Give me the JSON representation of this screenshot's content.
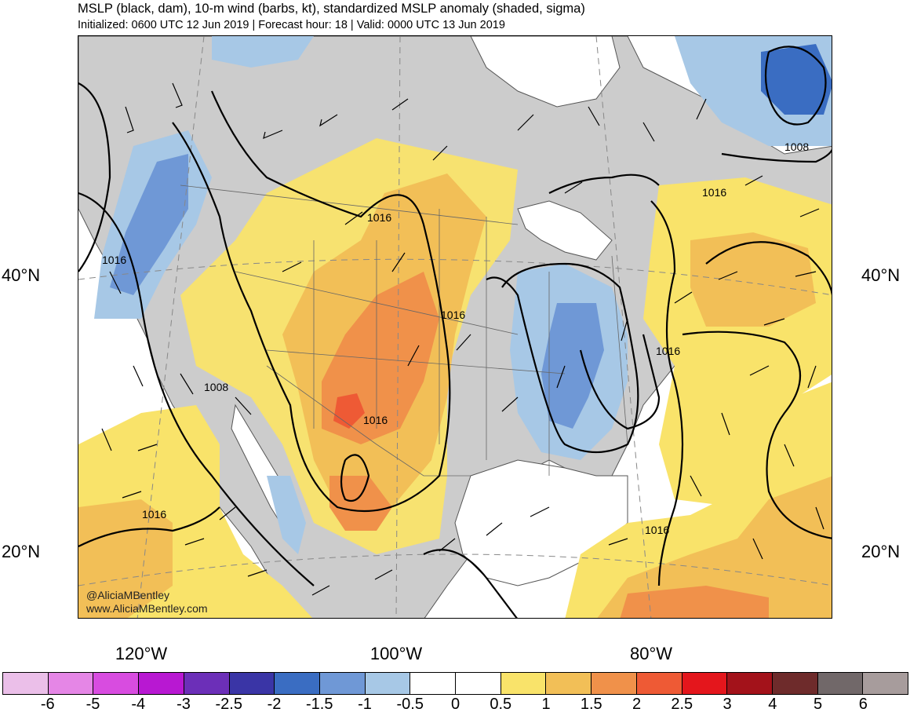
{
  "title": "MSLP (black, dam), 10-m wind (barbs, kt), standardized MSLP anomaly (shaded, sigma)",
  "subtitle": "Initialized: 0600 UTC 12 Jun 2019 | Forecast hour: 18 | Valid: 0000 UTC 13 Jun 2019",
  "lat_labels": [
    "40°N",
    "20°N"
  ],
  "lon_labels": [
    "120°W",
    "100°W",
    "80°W"
  ],
  "credit": {
    "handle": "@AliciaMBentley",
    "site": "www.AliciaMBentley.com"
  },
  "contour_labels": [
    "1016",
    "1016",
    "1016",
    "1016",
    "1008",
    "1008",
    "1016",
    "1016",
    "1016",
    "1016"
  ],
  "colorbar": {
    "labels": [
      "-6",
      "-5",
      "-4",
      "-3",
      "-2.5",
      "-2",
      "-1.5",
      "-1",
      "-0.5",
      "0",
      "0.5",
      "1",
      "1.5",
      "2",
      "2.5",
      "3",
      "4",
      "5",
      "6"
    ],
    "colors": [
      "#ebbfe9",
      "#e586e6",
      "#d84ce0",
      "#b818d2",
      "#6c2fb8",
      "#3a35a6",
      "#3a6dc2",
      "#6f98d6",
      "#a7c8e6",
      "#ffffff",
      "#ffffff",
      "#f9e36a",
      "#f2bf57",
      "#f0914a",
      "#ee5a35",
      "#e4161c",
      "#a3121a",
      "#6e2b2b",
      "#716869",
      "#a79c9c"
    ]
  },
  "colors": {
    "land": "#cccccc",
    "pos_05": "#f9e36a",
    "pos_1": "#f2bf57",
    "pos_15": "#f0914a",
    "pos_2": "#ee5a35",
    "neg_05": "#a7c8e6",
    "neg_1": "#6f98d6",
    "neg_15": "#3a6dc2"
  }
}
